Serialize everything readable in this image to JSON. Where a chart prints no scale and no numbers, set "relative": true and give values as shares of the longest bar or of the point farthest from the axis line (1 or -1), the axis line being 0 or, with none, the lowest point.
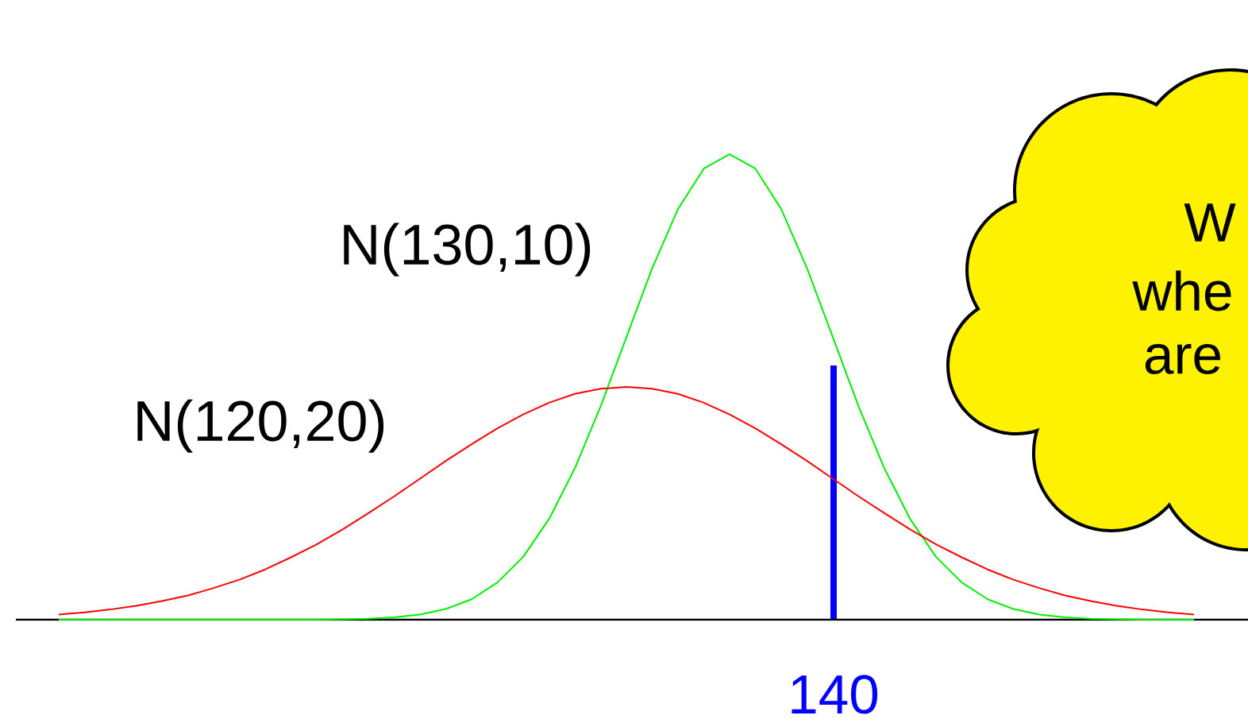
{
  "chart_data": {
    "type": "line",
    "relative": true,
    "categories": [
      null,
      null,
      null,
      null,
      null,
      null,
      null,
      null,
      null,
      null,
      null,
      null,
      null,
      null,
      null,
      null,
      null,
      null,
      null,
      null,
      null,
      null,
      null,
      null,
      null,
      null,
      null,
      null,
      null,
      null,
      null,
      null,
      null,
      null,
      null,
      null,
      null,
      null,
      null,
      null,
      null,
      null,
      null,
      null,
      null
    ],
    "series": [
      {
        "name": "N(130,10)",
        "color": "#00ee00",
        "values": [
          0,
          0,
          0,
          0,
          0,
          0,
          0,
          0,
          0,
          0,
          0,
          0.001,
          0.002,
          0.005,
          0.011,
          0.023,
          0.044,
          0.08,
          0.135,
          0.216,
          0.325,
          0.458,
          0.607,
          0.755,
          0.882,
          0.969,
          1,
          0.969,
          0.882,
          0.755,
          0.607,
          0.458,
          0.325,
          0.216,
          0.135,
          0.08,
          0.044,
          0.023,
          0.011,
          0.005,
          0.002,
          0.001,
          0,
          0,
          0
        ]
      },
      {
        "name": "N(120,20)",
        "color": "#ff0000",
        "values": [
          0.011,
          0.016,
          0.022,
          0.03,
          0.04,
          0.052,
          0.068,
          0.086,
          0.108,
          0.134,
          0.162,
          0.194,
          0.229,
          0.265,
          0.303,
          0.341,
          0.377,
          0.411,
          0.441,
          0.466,
          0.485,
          0.496,
          0.5,
          0.496,
          0.485,
          0.466,
          0.441,
          0.411,
          0.377,
          0.341,
          0.303,
          0.265,
          0.229,
          0.194,
          0.162,
          0.134,
          0.108,
          0.086,
          0.068,
          0.052,
          0.04,
          0.03,
          0.022,
          0.016,
          0.011
        ]
      }
    ],
    "annotations": [
      "W",
      "whe",
      "are",
      "140"
    ]
  }
}
